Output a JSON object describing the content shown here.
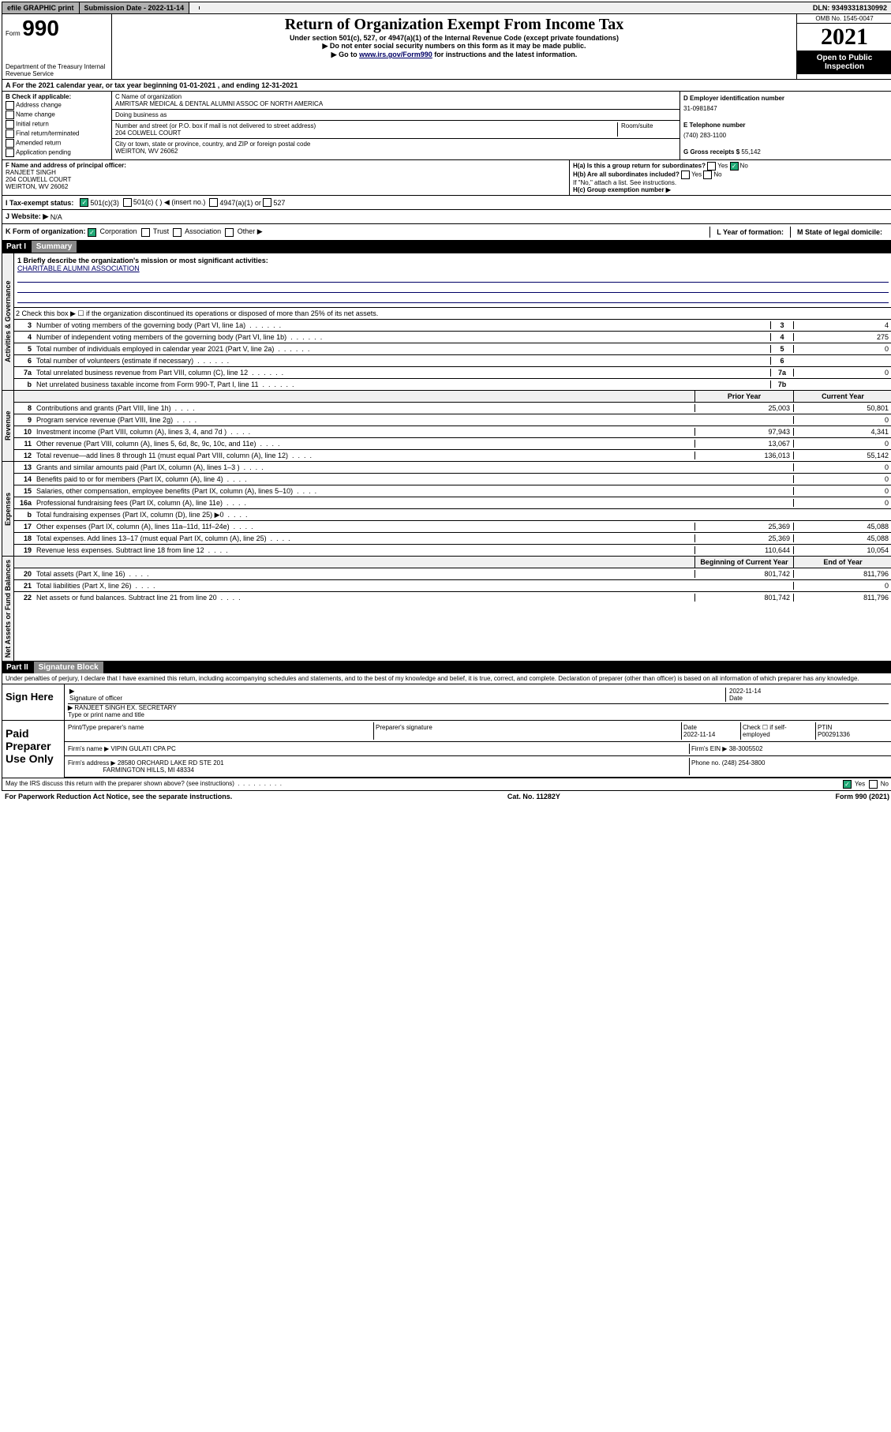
{
  "topbar": {
    "efile": "efile GRAPHIC print",
    "submission_label": "Submission Date - 2022-11-14",
    "dln": "DLN: 93493318130992"
  },
  "header": {
    "form_word": "Form",
    "form_no": "990",
    "title": "Return of Organization Exempt From Income Tax",
    "sub1": "Under section 501(c), 527, or 4947(a)(1) of the Internal Revenue Code (except private foundations)",
    "sub2": "▶ Do not enter social security numbers on this form as it may be made public.",
    "sub3_pre": "▶ Go to ",
    "sub3_link": "www.irs.gov/Form990",
    "sub3_post": " for instructions and the latest information.",
    "omb": "OMB No. 1545-0047",
    "year": "2021",
    "open": "Open to Public Inspection",
    "dept": "Department of the Treasury Internal Revenue Service"
  },
  "a_row": "A For the 2021 calendar year, or tax year beginning 01-01-2021   , and ending 12-31-2021",
  "b": {
    "label": "B Check if applicable:",
    "addr": "Address change",
    "name": "Name change",
    "init": "Initial return",
    "final": "Final return/terminated",
    "amend": "Amended return",
    "app": "Application pending"
  },
  "c": {
    "lbl_name": "C Name of organization",
    "org": "AMRITSAR MEDICAL & DENTAL ALUMNI ASSOC OF NORTH AMERICA",
    "dba_lbl": "Doing business as",
    "addr_lbl": "Number and street (or P.O. box if mail is not delivered to street address)",
    "room_lbl": "Room/suite",
    "addr": "204 COLWELL COURT",
    "city_lbl": "City or town, state or province, country, and ZIP or foreign postal code",
    "city": "WEIRTON, WV  26062"
  },
  "d": {
    "lbl": "D Employer identification number",
    "ein": "31-0981847",
    "e_lbl": "E Telephone number",
    "phone": "(740) 283-1100",
    "g_lbl": "G Gross receipts $",
    "g_val": "55,142"
  },
  "f": {
    "lbl": "F Name and address of principal officer:",
    "name": "RANJEET SINGH",
    "addr": "204 COLWELL COURT",
    "city": "WEIRTON, WV  26062"
  },
  "h": {
    "a": "H(a)  Is this a group return for subordinates?",
    "a_yes": "Yes",
    "a_no": "No",
    "b": "H(b)  Are all subordinates included?",
    "b_yes": "Yes",
    "b_no": "No",
    "b_note": "If \"No,\" attach a list. See instructions.",
    "c": "H(c)  Group exemption number ▶"
  },
  "i": {
    "lbl": "I   Tax-exempt status:",
    "c3": "501(c)(3)",
    "c": "501(c) (  ) ◀ (insert no.)",
    "a1": "4947(a)(1) or",
    "527": "527"
  },
  "j": {
    "lbl": "J   Website: ▶",
    "val": "N/A"
  },
  "k": {
    "lbl": "K Form of organization:",
    "corp": "Corporation",
    "trust": "Trust",
    "assoc": "Association",
    "other": "Other ▶",
    "l_lbl": "L Year of formation:",
    "m_lbl": "M State of legal domicile:"
  },
  "part1": {
    "hdr": "Part I",
    "hdr2": "Summary",
    "l1_lbl": "1  Briefly describe the organization's mission or most significant activities:",
    "l1_txt": "CHARITABLE ALUMNI ASSOCIATION",
    "l2": "2   Check this box ▶ ☐  if the organization discontinued its operations or disposed of more than 25% of its net assets.",
    "rows_ag": [
      {
        "n": "3",
        "d": "Number of voting members of the governing body (Part VI, line 1a)",
        "rn": "3",
        "v": "4"
      },
      {
        "n": "4",
        "d": "Number of independent voting members of the governing body (Part VI, line 1b)",
        "rn": "4",
        "v": "275"
      },
      {
        "n": "5",
        "d": "Total number of individuals employed in calendar year 2021 (Part V, line 2a)",
        "rn": "5",
        "v": "0"
      },
      {
        "n": "6",
        "d": "Total number of volunteers (estimate if necessary)",
        "rn": "6",
        "v": ""
      },
      {
        "n": "7a",
        "d": "Total unrelated business revenue from Part VIII, column (C), line 12",
        "rn": "7a",
        "v": "0"
      },
      {
        "n": "b",
        "d": "Net unrelated business taxable income from Form 990-T, Part I, line 11",
        "rn": "7b",
        "v": ""
      }
    ],
    "col_prior": "Prior Year",
    "col_curr": "Current Year",
    "rows_rev": [
      {
        "n": "8",
        "d": "Contributions and grants (Part VIII, line 1h)",
        "p": "25,003",
        "c": "50,801"
      },
      {
        "n": "9",
        "d": "Program service revenue (Part VIII, line 2g)",
        "p": "",
        "c": "0"
      },
      {
        "n": "10",
        "d": "Investment income (Part VIII, column (A), lines 3, 4, and 7d )",
        "p": "97,943",
        "c": "4,341"
      },
      {
        "n": "11",
        "d": "Other revenue (Part VIII, column (A), lines 5, 6d, 8c, 9c, 10c, and 11e)",
        "p": "13,067",
        "c": "0"
      },
      {
        "n": "12",
        "d": "Total revenue—add lines 8 through 11 (must equal Part VIII, column (A), line 12)",
        "p": "136,013",
        "c": "55,142"
      }
    ],
    "rows_exp": [
      {
        "n": "13",
        "d": "Grants and similar amounts paid (Part IX, column (A), lines 1–3 )",
        "p": "",
        "c": "0"
      },
      {
        "n": "14",
        "d": "Benefits paid to or for members (Part IX, column (A), line 4)",
        "p": "",
        "c": "0"
      },
      {
        "n": "15",
        "d": "Salaries, other compensation, employee benefits (Part IX, column (A), lines 5–10)",
        "p": "",
        "c": "0"
      },
      {
        "n": "16a",
        "d": "Professional fundraising fees (Part IX, column (A), line 11e)",
        "p": "",
        "c": "0"
      },
      {
        "n": "b",
        "d": "Total fundraising expenses (Part IX, column (D), line 25) ▶0",
        "p": "shade",
        "c": "shade"
      },
      {
        "n": "17",
        "d": "Other expenses (Part IX, column (A), lines 11a–11d, 11f–24e)",
        "p": "25,369",
        "c": "45,088"
      },
      {
        "n": "18",
        "d": "Total expenses. Add lines 13–17 (must equal Part IX, column (A), line 25)",
        "p": "25,369",
        "c": "45,088"
      },
      {
        "n": "19",
        "d": "Revenue less expenses. Subtract line 18 from line 12",
        "p": "110,644",
        "c": "10,054"
      }
    ],
    "col_beg": "Beginning of Current Year",
    "col_end": "End of Year",
    "rows_na": [
      {
        "n": "20",
        "d": "Total assets (Part X, line 16)",
        "p": "801,742",
        "c": "811,796"
      },
      {
        "n": "21",
        "d": "Total liabilities (Part X, line 26)",
        "p": "",
        "c": "0"
      },
      {
        "n": "22",
        "d": "Net assets or fund balances. Subtract line 21 from line 20",
        "p": "801,742",
        "c": "811,796"
      }
    ],
    "side_ag": "Activities & Governance",
    "side_rev": "Revenue",
    "side_exp": "Expenses",
    "side_na": "Net Assets or Fund Balances"
  },
  "part2": {
    "hdr": "Part II",
    "hdr2": "Signature Block",
    "decl": "Under penalties of perjury, I declare that I have examined this return, including accompanying schedules and statements, and to the best of my knowledge and belief, it is true, correct, and complete. Declaration of preparer (other than officer) is based on all information of which preparer has any knowledge.",
    "sign_here": "Sign Here",
    "sig_officer": "Signature of officer",
    "date_lbl": "Date",
    "sig_date": "2022-11-14",
    "name_title": "RANJEET SINGH  EX. SECRETARY",
    "name_lbl": "Type or print name and title",
    "paid": "Paid Preparer Use Only",
    "prep_name_lbl": "Print/Type preparer's name",
    "prep_sig_lbl": "Preparer's signature",
    "prep_date_lbl": "Date",
    "prep_date": "2022-11-14",
    "chk_lbl": "Check ☐ if self-employed",
    "ptin_lbl": "PTIN",
    "ptin": "P00291336",
    "firm_name_lbl": "Firm's name    ▶",
    "firm_name": "VIPIN GULATI CPA PC",
    "firm_ein_lbl": "Firm's EIN ▶",
    "firm_ein": "38-3005502",
    "firm_addr_lbl": "Firm's address ▶",
    "firm_addr": "28580 ORCHARD LAKE RD STE 201",
    "firm_city": "FARMINGTON HILLS, MI  48334",
    "phone_lbl": "Phone no.",
    "firm_phone": "(248) 254-3800",
    "irs_q": "May the IRS discuss this return with the preparer shown above? (see instructions)",
    "yes": "Yes",
    "no": "No"
  },
  "footer": {
    "pra": "For Paperwork Reduction Act Notice, see the separate instructions.",
    "cat": "Cat. No. 11282Y",
    "form": "Form 990 (2021)"
  }
}
